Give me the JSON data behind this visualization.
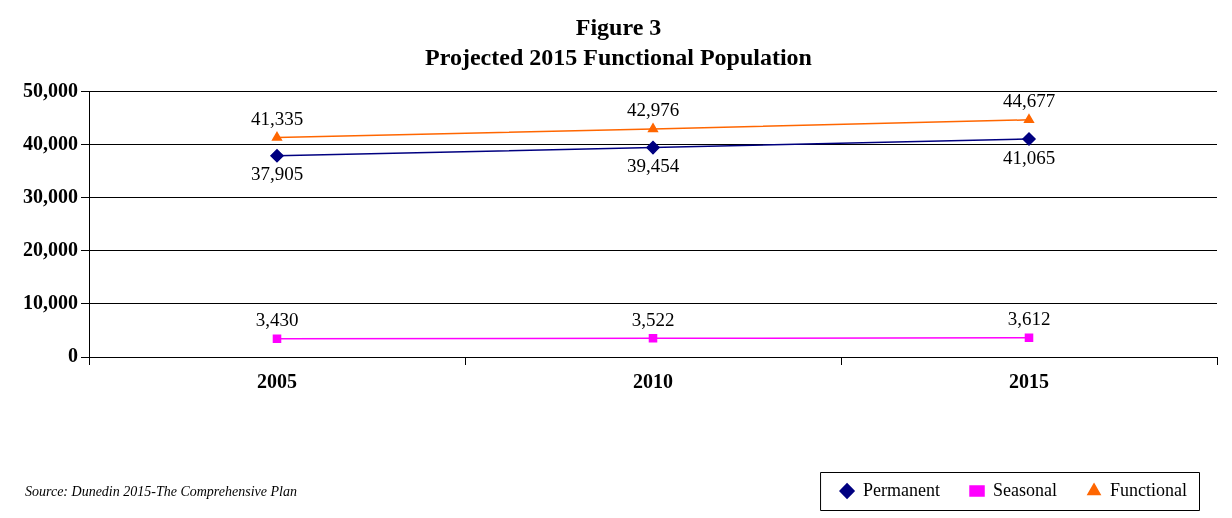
{
  "chart_data": {
    "type": "line",
    "title": "Figure 3",
    "subtitle": "Projected 2015 Functional Population",
    "categories": [
      "2005",
      "2010",
      "2015"
    ],
    "series": [
      {
        "name": "Permanent",
        "color": "#000080",
        "marker": "diamond",
        "values": [
          37905,
          39454,
          41065
        ],
        "value_labels": [
          "37,905",
          "39,454",
          "41,065"
        ]
      },
      {
        "name": "Seasonal",
        "color": "#ff00ff",
        "marker": "square",
        "values": [
          3430,
          3522,
          3612
        ],
        "value_labels": [
          "3,430",
          "3,522",
          "3,612"
        ]
      },
      {
        "name": "Functional",
        "color": "#ff6600",
        "marker": "triangle",
        "values": [
          41335,
          42976,
          44677
        ],
        "value_labels": [
          "41,335",
          "42,976",
          "44,677"
        ]
      }
    ],
    "ylim": [
      0,
      50000
    ],
    "yticks": [
      {
        "value": 0,
        "label": "0"
      },
      {
        "value": 10000,
        "label": "10,000"
      },
      {
        "value": 20000,
        "label": "20,000"
      },
      {
        "value": 30000,
        "label": "30,000"
      },
      {
        "value": 40000,
        "label": "40,000"
      },
      {
        "value": 50000,
        "label": "50,000"
      }
    ],
    "grid": "y",
    "legend": "bottom right",
    "annotations": [
      "Source: Dunedin 2015-The Comprehensive Plan"
    ]
  }
}
